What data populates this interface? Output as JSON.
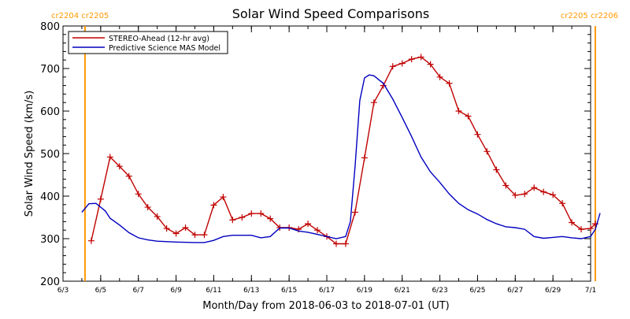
{
  "chart_data": {
    "type": "line",
    "title": "Solar Wind Speed Comparisons",
    "xlabel": "Month/Day from 2018-06-03 to 2018-07-01 (UT)",
    "ylabel": "Solar Wind Speed (km/s)",
    "xlim": [
      "2018-06-03",
      "2018-07-01"
    ],
    "ylim": [
      200,
      800
    ],
    "yticks": [
      200,
      300,
      400,
      500,
      600,
      700,
      800
    ],
    "xticks": [
      {
        "date": "2018-06-03",
        "label": "6/3"
      },
      {
        "date": "2018-06-05",
        "label": "6/5"
      },
      {
        "date": "2018-06-07",
        "label": "6/7"
      },
      {
        "date": "2018-06-09",
        "label": "6/9"
      },
      {
        "date": "2018-06-11",
        "label": "6/11"
      },
      {
        "date": "2018-06-13",
        "label": "6/13"
      },
      {
        "date": "2018-06-15",
        "label": "6/15"
      },
      {
        "date": "2018-06-17",
        "label": "6/17"
      },
      {
        "date": "2018-06-19",
        "label": "6/19"
      },
      {
        "date": "2018-06-21",
        "label": "6/21"
      },
      {
        "date": "2018-06-23",
        "label": "6/23"
      },
      {
        "date": "2018-06-25",
        "label": "6/25"
      },
      {
        "date": "2018-06-27",
        "label": "6/27"
      },
      {
        "date": "2018-06-29",
        "label": "6/29"
      },
      {
        "date": "2018-07-01",
        "label": "7/1"
      }
    ],
    "grid": false,
    "legend_position": "top-left",
    "rotation_markers": [
      {
        "x": "2018-06-04T04:00",
        "label": "cr2204 cr2205",
        "color": "#ff9900",
        "label_position": "left"
      },
      {
        "x": "2018-07-01T06:00",
        "label": "cr2205 cr2206",
        "color": "#ff9900",
        "label_position": "right"
      }
    ],
    "series": [
      {
        "name": "STEREO-Ahead (12-hr avg)",
        "color": "#c00000",
        "marker": "plus",
        "points": [
          [
            "2018-06-04T12:00",
            295
          ],
          [
            "2018-06-05T00:00",
            393
          ],
          [
            "2018-06-05T12:00",
            492
          ],
          [
            "2018-06-06T00:00",
            470
          ],
          [
            "2018-06-06T12:00",
            447
          ],
          [
            "2018-06-07T00:00",
            405
          ],
          [
            "2018-06-07T12:00",
            374
          ],
          [
            "2018-06-08T00:00",
            352
          ],
          [
            "2018-06-08T12:00",
            324
          ],
          [
            "2018-06-09T00:00",
            312
          ],
          [
            "2018-06-09T12:00",
            326
          ],
          [
            "2018-06-10T00:00",
            309
          ],
          [
            "2018-06-10T12:00",
            309
          ],
          [
            "2018-06-11T00:00",
            379
          ],
          [
            "2018-06-11T12:00",
            398
          ],
          [
            "2018-06-12T00:00",
            344
          ],
          [
            "2018-06-12T12:00",
            350
          ],
          [
            "2018-06-13T00:00",
            359
          ],
          [
            "2018-06-13T12:00",
            359
          ],
          [
            "2018-06-14T00:00",
            347
          ],
          [
            "2018-06-14T12:00",
            326
          ],
          [
            "2018-06-15T00:00",
            326
          ],
          [
            "2018-06-15T12:00",
            322
          ],
          [
            "2018-06-16T00:00",
            335
          ],
          [
            "2018-06-16T12:00",
            320
          ],
          [
            "2018-06-17T00:00",
            305
          ],
          [
            "2018-06-17T12:00",
            288
          ],
          [
            "2018-06-18T00:00",
            288
          ],
          [
            "2018-06-18T12:00",
            362
          ],
          [
            "2018-06-19T00:00",
            490
          ],
          [
            "2018-06-19T12:00",
            620
          ],
          [
            "2018-06-20T00:00",
            660
          ],
          [
            "2018-06-20T12:00",
            705
          ],
          [
            "2018-06-21T00:00",
            712
          ],
          [
            "2018-06-21T12:00",
            722
          ],
          [
            "2018-06-22T00:00",
            727
          ],
          [
            "2018-06-22T12:00",
            710
          ],
          [
            "2018-06-23T00:00",
            680
          ],
          [
            "2018-06-23T12:00",
            665
          ],
          [
            "2018-06-24T00:00",
            600
          ],
          [
            "2018-06-24T12:00",
            588
          ],
          [
            "2018-06-25T00:00",
            545
          ],
          [
            "2018-06-25T12:00",
            505
          ],
          [
            "2018-06-26T00:00",
            462
          ],
          [
            "2018-06-26T12:00",
            425
          ],
          [
            "2018-06-27T00:00",
            402
          ],
          [
            "2018-06-27T12:00",
            405
          ],
          [
            "2018-06-28T00:00",
            420
          ],
          [
            "2018-06-28T12:00",
            410
          ],
          [
            "2018-06-29T00:00",
            403
          ],
          [
            "2018-06-29T12:00",
            383
          ],
          [
            "2018-06-30T00:00",
            338
          ],
          [
            "2018-06-30T12:00",
            322
          ],
          [
            "2018-07-01T00:00",
            324
          ],
          [
            "2018-07-01T06:00",
            335
          ]
        ]
      },
      {
        "name": "Predictive Science MAS Model",
        "color": "#0000c0",
        "marker": "none",
        "points": [
          [
            "2018-06-04T00:00",
            362
          ],
          [
            "2018-06-04T09:00",
            382
          ],
          [
            "2018-06-04T18:00",
            383
          ],
          [
            "2018-06-05T06:00",
            365
          ],
          [
            "2018-06-05T12:00",
            348
          ],
          [
            "2018-06-06T00:00",
            332
          ],
          [
            "2018-06-06T12:00",
            314
          ],
          [
            "2018-06-07T00:00",
            302
          ],
          [
            "2018-06-07T12:00",
            297
          ],
          [
            "2018-06-08T00:00",
            294
          ],
          [
            "2018-06-09T00:00",
            292
          ],
          [
            "2018-06-10T00:00",
            291
          ],
          [
            "2018-06-10T12:00",
            291
          ],
          [
            "2018-06-11T00:00",
            296
          ],
          [
            "2018-06-11T12:00",
            305
          ],
          [
            "2018-06-12T00:00",
            308
          ],
          [
            "2018-06-12T12:00",
            308
          ],
          [
            "2018-06-13T00:00",
            308
          ],
          [
            "2018-06-13T12:00",
            302
          ],
          [
            "2018-06-14T00:00",
            305
          ],
          [
            "2018-06-14T12:00",
            325
          ],
          [
            "2018-06-15T00:00",
            325
          ],
          [
            "2018-06-15T12:00",
            318
          ],
          [
            "2018-06-16T00:00",
            315
          ],
          [
            "2018-06-16T12:00",
            310
          ],
          [
            "2018-06-17T00:00",
            305
          ],
          [
            "2018-06-17T12:00",
            300
          ],
          [
            "2018-06-18T00:00",
            305
          ],
          [
            "2018-06-18T06:00",
            340
          ],
          [
            "2018-06-18T12:00",
            470
          ],
          [
            "2018-06-18T18:00",
            625
          ],
          [
            "2018-06-19T00:00",
            678
          ],
          [
            "2018-06-19T06:00",
            685
          ],
          [
            "2018-06-19T12:00",
            683
          ],
          [
            "2018-06-20T00:00",
            665
          ],
          [
            "2018-06-20T12:00",
            628
          ],
          [
            "2018-06-21T00:00",
            585
          ],
          [
            "2018-06-21T12:00",
            540
          ],
          [
            "2018-06-22T00:00",
            492
          ],
          [
            "2018-06-22T12:00",
            457
          ],
          [
            "2018-06-23T00:00",
            432
          ],
          [
            "2018-06-23T12:00",
            405
          ],
          [
            "2018-06-24T00:00",
            383
          ],
          [
            "2018-06-24T12:00",
            368
          ],
          [
            "2018-06-25T00:00",
            358
          ],
          [
            "2018-06-25T12:00",
            345
          ],
          [
            "2018-06-26T00:00",
            335
          ],
          [
            "2018-06-26T12:00",
            328
          ],
          [
            "2018-06-27T00:00",
            326
          ],
          [
            "2018-06-27T12:00",
            322
          ],
          [
            "2018-06-28T00:00",
            305
          ],
          [
            "2018-06-28T12:00",
            301
          ],
          [
            "2018-06-29T00:00",
            303
          ],
          [
            "2018-06-29T12:00",
            305
          ],
          [
            "2018-06-30T00:00",
            302
          ],
          [
            "2018-06-30T12:00",
            300
          ],
          [
            "2018-07-01T00:00",
            305
          ],
          [
            "2018-07-01T06:00",
            322
          ],
          [
            "2018-07-01T12:00",
            360
          ]
        ]
      }
    ]
  }
}
